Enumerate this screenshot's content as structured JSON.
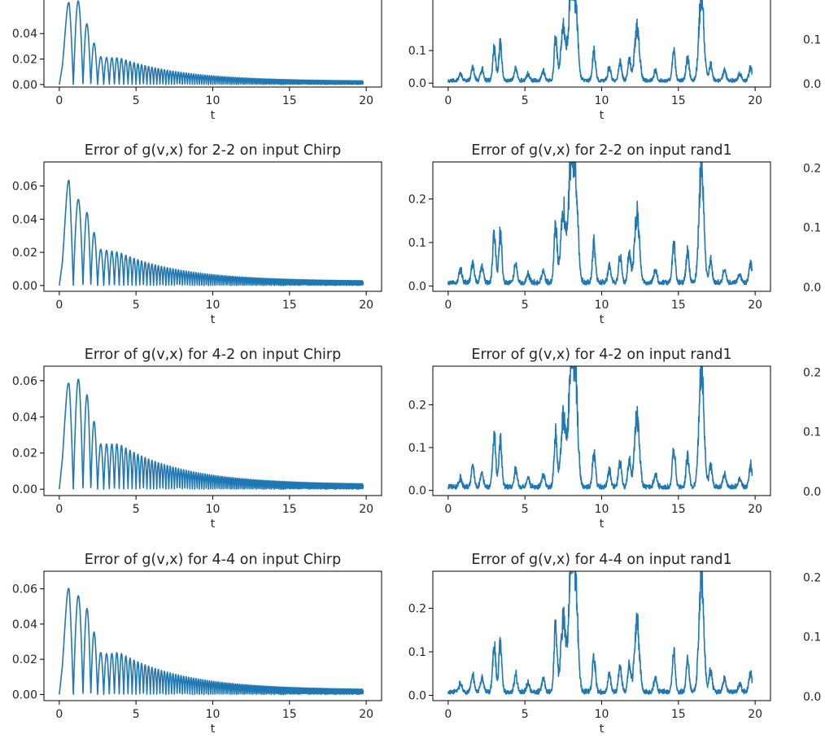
{
  "colors": {
    "series": "#1f77b4",
    "frame": "#000000",
    "text": "#262626"
  },
  "chart_data": [
    {
      "type": "line",
      "row": 0,
      "col": 0,
      "title": "",
      "xlabel": "t",
      "xlim": [
        -1,
        21
      ],
      "ylim": [
        -0.002,
        0.074
      ],
      "xticks": [
        "0",
        "5",
        "10",
        "15",
        "20"
      ],
      "yticks": [
        0,
        0.02,
        0.04
      ],
      "yticklabels": [
        "0.00",
        "0.02",
        "0.04"
      ],
      "signal": "chirp",
      "peaks": [
        0.028,
        0.072,
        0.07,
        0.043,
        0.022,
        0.021,
        0.021
      ]
    },
    {
      "type": "line",
      "row": 0,
      "col": 1,
      "title": "",
      "xlabel": "t",
      "xlim": [
        -1,
        21
      ],
      "ylim": [
        -0.012,
        0.285
      ],
      "xticks": [
        "0",
        "5",
        "10",
        "15",
        "20"
      ],
      "yticks": [
        0,
        0.1
      ],
      "yticklabels": [
        "0.0",
        "0.1"
      ],
      "signal": "rand",
      "peaks": [
        [
          0.8,
          0.02
        ],
        [
          1.6,
          0.04
        ],
        [
          2.2,
          0.035
        ],
        [
          3.0,
          0.1
        ],
        [
          3.4,
          0.11
        ],
        [
          4.4,
          0.04
        ],
        [
          5.2,
          0.02
        ],
        [
          6.2,
          0.03
        ],
        [
          7.0,
          0.13
        ],
        [
          7.5,
          0.16
        ],
        [
          8.0,
          0.26
        ],
        [
          8.3,
          0.2
        ],
        [
          9.5,
          0.09
        ],
        [
          10.5,
          0.04
        ],
        [
          11.2,
          0.06
        ],
        [
          11.8,
          0.06
        ],
        [
          12.3,
          0.16
        ],
        [
          13.5,
          0.03
        ],
        [
          14.7,
          0.09
        ],
        [
          15.6,
          0.07
        ],
        [
          16.5,
          0.27
        ],
        [
          17.1,
          0.05
        ],
        [
          18.0,
          0.03
        ],
        [
          19.0,
          0.02
        ],
        [
          19.7,
          0.04
        ]
      ]
    },
    {
      "type": "line",
      "row": 0,
      "col": 2,
      "partial": true,
      "ylim": [
        -0.007,
        0.21
      ],
      "yticks": [
        0,
        0.1
      ],
      "yticklabels": [
        "0.0",
        "0.1"
      ]
    },
    {
      "type": "line",
      "row": 1,
      "col": 0,
      "title": "Error of g(v,x) for 2-2 on input Chirp",
      "xlabel": "t",
      "xlim": [
        -1,
        21
      ],
      "ylim": [
        -0.0035,
        0.0745
      ],
      "xticks": [
        "0",
        "5",
        "10",
        "15",
        "20"
      ],
      "yticks": [
        0,
        0.02,
        0.04,
        0.06
      ],
      "yticklabels": [
        "0.00",
        "0.02",
        "0.04",
        "0.06"
      ],
      "signal": "chirp",
      "peaks": [
        0.027,
        0.071,
        0.054,
        0.042,
        0.022,
        0.021,
        0.02
      ]
    },
    {
      "type": "line",
      "row": 1,
      "col": 1,
      "title": "Error of g(v,x) for 2-2 on input rand1",
      "xlabel": "t",
      "xlim": [
        -1,
        21
      ],
      "ylim": [
        -0.012,
        0.285
      ],
      "xticks": [
        "0",
        "5",
        "10",
        "15",
        "20"
      ],
      "yticks": [
        0,
        0.1,
        0.2
      ],
      "yticklabels": [
        "0.0",
        "0.1",
        "0.2"
      ],
      "signal": "rand",
      "peaks": [
        [
          0.8,
          0.03
        ],
        [
          1.6,
          0.045
        ],
        [
          2.2,
          0.04
        ],
        [
          3.0,
          0.11
        ],
        [
          3.4,
          0.11
        ],
        [
          4.4,
          0.045
        ],
        [
          5.2,
          0.02
        ],
        [
          6.2,
          0.03
        ],
        [
          7.0,
          0.13
        ],
        [
          7.5,
          0.17
        ],
        [
          8.0,
          0.265
        ],
        [
          8.3,
          0.21
        ],
        [
          9.5,
          0.09
        ],
        [
          10.5,
          0.04
        ],
        [
          11.2,
          0.06
        ],
        [
          11.8,
          0.07
        ],
        [
          12.3,
          0.16
        ],
        [
          13.5,
          0.03
        ],
        [
          14.7,
          0.09
        ],
        [
          15.6,
          0.07
        ],
        [
          16.5,
          0.27
        ],
        [
          17.1,
          0.05
        ],
        [
          18.0,
          0.03
        ],
        [
          19.0,
          0.02
        ],
        [
          19.7,
          0.045
        ]
      ]
    },
    {
      "type": "line",
      "row": 1,
      "col": 2,
      "partial": true,
      "ylim": [
        -0.007,
        0.21
      ],
      "yticks": [
        0,
        0.1,
        0.2
      ],
      "yticklabels": [
        "0.0",
        "0.1",
        "0.2"
      ]
    },
    {
      "type": "line",
      "row": 2,
      "col": 0,
      "title": "Error of g(v,x) for 4-2 on input Chirp",
      "xlabel": "t",
      "xlim": [
        -1,
        21
      ],
      "ylim": [
        -0.0035,
        0.068
      ],
      "xticks": [
        "0",
        "5",
        "10",
        "15",
        "20"
      ],
      "yticks": [
        0,
        0.02,
        0.04,
        0.06
      ],
      "yticklabels": [
        "0.00",
        "0.02",
        "0.04",
        "0.06"
      ],
      "signal": "chirp",
      "peaks": [
        0.032,
        0.065,
        0.063,
        0.05,
        0.025,
        0.025,
        0.025
      ]
    },
    {
      "type": "line",
      "row": 2,
      "col": 1,
      "title": "Error of g(v,x) for 4-2 on input rand1",
      "xlabel": "t",
      "xlim": [
        -1,
        21
      ],
      "ylim": [
        -0.012,
        0.29
      ],
      "xticks": [
        "0",
        "5",
        "10",
        "15",
        "20"
      ],
      "yticks": [
        0,
        0.1,
        0.2
      ],
      "yticklabels": [
        "0.0",
        "0.1",
        "0.2"
      ],
      "signal": "rand",
      "peaks": [
        [
          0.8,
          0.02
        ],
        [
          1.6,
          0.05
        ],
        [
          2.2,
          0.03
        ],
        [
          3.0,
          0.12
        ],
        [
          3.4,
          0.11
        ],
        [
          4.4,
          0.04
        ],
        [
          5.2,
          0.02
        ],
        [
          6.2,
          0.03
        ],
        [
          7.0,
          0.12
        ],
        [
          7.5,
          0.16
        ],
        [
          8.0,
          0.275
        ],
        [
          8.3,
          0.22
        ],
        [
          9.5,
          0.08
        ],
        [
          10.5,
          0.04
        ],
        [
          11.2,
          0.06
        ],
        [
          11.8,
          0.06
        ],
        [
          12.3,
          0.17
        ],
        [
          13.5,
          0.03
        ],
        [
          14.7,
          0.09
        ],
        [
          15.6,
          0.07
        ],
        [
          16.5,
          0.285
        ],
        [
          17.1,
          0.05
        ],
        [
          18.0,
          0.03
        ],
        [
          19.0,
          0.02
        ],
        [
          19.7,
          0.05
        ]
      ]
    },
    {
      "type": "line",
      "row": 2,
      "col": 2,
      "partial": true,
      "ylim": [
        -0.007,
        0.21
      ],
      "yticks": [
        0,
        0.1,
        0.2
      ],
      "yticklabels": [
        "0.0",
        "0.1",
        "0.2"
      ]
    },
    {
      "type": "line",
      "row": 3,
      "col": 0,
      "title": "Error of g(v,x) for 4-4 on input Chirp",
      "xlabel": "t",
      "xlim": [
        -1,
        21
      ],
      "ylim": [
        -0.0035,
        0.07
      ],
      "xticks": [
        "0",
        "5",
        "10",
        "15",
        "20"
      ],
      "yticks": [
        0,
        0.02,
        0.04,
        0.06
      ],
      "yticklabels": [
        "0.00",
        "0.02",
        "0.04",
        "0.06"
      ],
      "signal": "chirp",
      "peaks": [
        0.031,
        0.067,
        0.058,
        0.047,
        0.024,
        0.023,
        0.024
      ]
    },
    {
      "type": "line",
      "row": 3,
      "col": 1,
      "title": "Error of g(v,x) for 4-4 on input rand1",
      "xlabel": "t",
      "xlim": [
        -1,
        21
      ],
      "ylim": [
        -0.012,
        0.285
      ],
      "xticks": [
        "0",
        "5",
        "10",
        "15",
        "20"
      ],
      "yticks": [
        0,
        0.1,
        0.2
      ],
      "yticklabels": [
        "0.0",
        "0.1",
        "0.2"
      ],
      "signal": "rand",
      "peaks": [
        [
          0.8,
          0.02
        ],
        [
          1.6,
          0.04
        ],
        [
          2.2,
          0.03
        ],
        [
          3.0,
          0.11
        ],
        [
          3.4,
          0.11
        ],
        [
          4.4,
          0.04
        ],
        [
          5.2,
          0.02
        ],
        [
          6.2,
          0.03
        ],
        [
          7.0,
          0.15
        ],
        [
          7.5,
          0.17
        ],
        [
          8.0,
          0.265
        ],
        [
          8.3,
          0.23
        ],
        [
          9.5,
          0.08
        ],
        [
          10.5,
          0.04
        ],
        [
          11.2,
          0.06
        ],
        [
          11.8,
          0.06
        ],
        [
          12.3,
          0.16
        ],
        [
          13.5,
          0.03
        ],
        [
          14.7,
          0.09
        ],
        [
          15.6,
          0.07
        ],
        [
          16.5,
          0.27
        ],
        [
          17.1,
          0.05
        ],
        [
          18.0,
          0.03
        ],
        [
          19.0,
          0.02
        ],
        [
          19.7,
          0.045
        ]
      ]
    },
    {
      "type": "line",
      "row": 3,
      "col": 2,
      "partial": true,
      "ylim": [
        -0.007,
        0.21
      ],
      "yticks": [
        0,
        0.1,
        0.2
      ],
      "yticklabels": [
        "0.0",
        "0.1",
        "0.2"
      ]
    }
  ]
}
